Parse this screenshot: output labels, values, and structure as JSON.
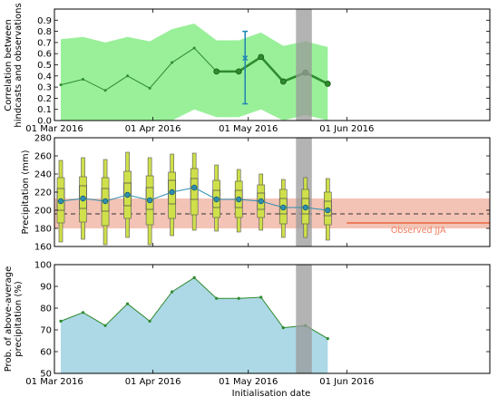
{
  "chart_data": [
    {
      "type": "line",
      "ylabel_lines": [
        "Correlation between",
        "hindcasts and observations"
      ],
      "ylim": [
        0.0,
        1.0
      ],
      "yticks": [
        0.0,
        0.1,
        0.2,
        0.3,
        0.4,
        0.5,
        0.6,
        0.7,
        0.8,
        0.9
      ],
      "ytick_labels": [
        "0.0",
        "0.1",
        "0.2",
        "0.3",
        "0.4",
        "0.5",
        "0.6",
        "0.7",
        "0.8",
        "0.9"
      ],
      "x": [
        "2016-03-03",
        "2016-03-10",
        "2016-03-17",
        "2016-03-24",
        "2016-03-31",
        "2016-04-07",
        "2016-04-14",
        "2016-04-21",
        "2016-04-28",
        "2016-05-05",
        "2016-05-12",
        "2016-05-19",
        "2016-05-26"
      ],
      "band_upper": [
        0.73,
        0.75,
        0.7,
        0.75,
        0.71,
        0.82,
        0.87,
        0.72,
        0.72,
        0.79,
        0.67,
        0.71,
        0.66
      ],
      "band_lower": [
        0.0,
        0.0,
        0.0,
        0.0,
        0.0,
        0.0,
        0.1,
        0.03,
        0.03,
        0.1,
        0.0,
        0.05,
        0.0
      ],
      "series": [
        {
          "values": [
            0.32,
            0.37,
            0.27,
            0.4,
            0.29,
            0.52,
            0.65,
            0.44,
            0.44,
            0.57,
            0.35,
            0.43,
            0.33
          ]
        }
      ],
      "highlight_x_from": 7,
      "errorbar": {
        "x": "2016-04-30",
        "center": 0.56,
        "low": 0.15,
        "high": 0.8
      },
      "shaded_span": [
        "2016-05-16",
        "2016-05-21"
      ],
      "colors": {
        "band": "#99f099",
        "line": "#2e8b2e",
        "errorbar": "#1f85b4",
        "span": "#999999"
      }
    },
    {
      "type": "box",
      "ylabel": "Precipitation (mm)",
      "ylim": [
        160,
        280
      ],
      "yticks": [
        160,
        180,
        200,
        220,
        240,
        260,
        280
      ],
      "ytick_labels": [
        "160",
        "180",
        "200",
        "220",
        "240",
        "260",
        "280"
      ],
      "x": [
        "2016-03-03",
        "2016-03-10",
        "2016-03-17",
        "2016-03-24",
        "2016-03-31",
        "2016-04-07",
        "2016-04-14",
        "2016-04-21",
        "2016-04-28",
        "2016-05-05",
        "2016-05-12",
        "2016-05-19",
        "2016-05-26"
      ],
      "medians": [
        210,
        213,
        210,
        217,
        211,
        220,
        225,
        212,
        212,
        210,
        203,
        203,
        200
      ],
      "whisker_low": [
        165,
        168,
        162,
        170,
        162,
        172,
        178,
        177,
        176,
        178,
        170,
        170,
        167
      ],
      "q1": [
        186,
        187,
        183,
        191,
        184,
        191,
        195,
        192,
        192,
        192,
        185,
        185,
        184
      ],
      "q2": [
        200,
        202,
        199,
        205,
        201,
        207,
        212,
        203,
        203,
        201,
        196,
        196,
        194
      ],
      "q3": [
        224,
        227,
        224,
        230,
        225,
        233,
        235,
        222,
        222,
        219,
        213,
        213,
        210
      ],
      "q4": [
        236,
        237,
        236,
        243,
        238,
        242,
        246,
        233,
        232,
        228,
        223,
        223,
        220
      ],
      "whisker_high": [
        255,
        258,
        256,
        264,
        258,
        262,
        263,
        250,
        245,
        240,
        234,
        236,
        235
      ],
      "observed_band": [
        180,
        213
      ],
      "reference_line": 196,
      "observed_jja": {
        "label": "Observed JJA",
        "value": 186,
        "from": "2016-06-01",
        "to": "2016-07-16"
      },
      "shaded_span": [
        "2016-05-16",
        "2016-05-21"
      ],
      "colors": {
        "box": "#cfe04a",
        "box_edge": "#555555",
        "median": "#2f8fb0",
        "obs_band": "#f3c3b6",
        "obs_line": "#ef7d5c",
        "span": "#999999"
      }
    },
    {
      "type": "area",
      "ylabel_lines": [
        "Prob. of above-average",
        "precipitation (%)"
      ],
      "xlabel": "Initialisation date",
      "ylim": [
        50,
        100
      ],
      "yticks": [
        50,
        60,
        70,
        80,
        90,
        100
      ],
      "ytick_labels": [
        "50",
        "60",
        "70",
        "80",
        "90",
        "100"
      ],
      "x": [
        "2016-03-03",
        "2016-03-10",
        "2016-03-17",
        "2016-03-24",
        "2016-03-31",
        "2016-04-07",
        "2016-04-14",
        "2016-04-21",
        "2016-04-28",
        "2016-05-05",
        "2016-05-12",
        "2016-05-19",
        "2016-05-26"
      ],
      "series": [
        {
          "values": [
            74,
            78,
            72,
            82,
            74,
            87.5,
            94,
            84.5,
            84.5,
            85,
            71,
            72,
            66
          ]
        }
      ],
      "shaded_span": [
        "2016-05-16",
        "2016-05-21"
      ],
      "colors": {
        "fill": "#add8e6",
        "line": "#2e8b2e",
        "span": "#999999"
      }
    }
  ],
  "xaxis": {
    "range": [
      "2016-03-01",
      "2016-07-16"
    ],
    "ticks": [
      "2016-03-01",
      "2016-04-01",
      "2016-05-01",
      "2016-06-01"
    ],
    "tick_labels": [
      "01 Mar 2016",
      "01 Apr 2016",
      "01 May 2016",
      "01 Jun 2016"
    ]
  }
}
